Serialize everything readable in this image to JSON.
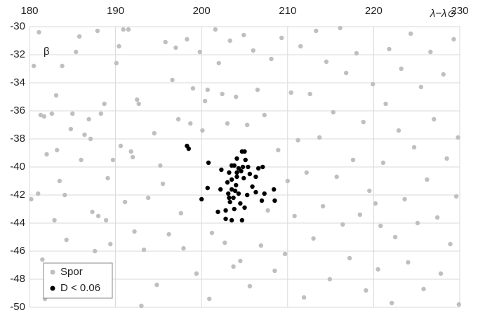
{
  "chart_data": {
    "type": "scatter",
    "xlabel": "λ−λ⊙",
    "ylabel": "β",
    "xlim": [
      180,
      230
    ],
    "ylim": [
      -50,
      -30
    ],
    "xticks": [
      180,
      190,
      200,
      210,
      220,
      230
    ],
    "yticks": [
      -50,
      -48,
      -46,
      -44,
      -42,
      -40,
      -38,
      -36,
      -34,
      -32,
      -30
    ],
    "grid": true,
    "legend": "lower left",
    "series": [
      {
        "name": "Spor",
        "color": "#bfbfbf",
        "x": [
          180.2,
          180.5,
          181.1,
          181.3,
          181.7,
          181.0,
          181.5,
          181.8,
          182.0,
          182.3,
          182.6,
          182.9,
          183.1,
          183.2,
          183.5,
          183.8,
          184.1,
          184.3,
          184.8,
          185.0,
          185.4,
          185.8,
          186.0,
          186.4,
          186.9,
          187.1,
          187.3,
          187.6,
          187.9,
          188.0,
          188.3,
          188.5,
          188.7,
          188.9,
          189.1,
          189.4,
          189.7,
          190.1,
          190.4,
          190.6,
          190.9,
          191.1,
          191.5,
          191.8,
          192.0,
          192.2,
          192.5,
          192.7,
          193.0,
          193.3,
          193.8,
          194.5,
          194.8,
          195.2,
          195.5,
          195.8,
          196.2,
          196.6,
          197.0,
          197.3,
          197.6,
          197.9,
          198.3,
          198.7,
          199.0,
          199.4,
          199.8,
          200.1,
          200.4,
          200.7,
          200.9,
          201.2,
          201.6,
          202.0,
          202.4,
          202.7,
          203.0,
          203.3,
          203.7,
          204.0,
          204.5,
          204.9,
          205.3,
          205.6,
          206.0,
          206.5,
          206.9,
          207.3,
          207.7,
          208.1,
          208.5,
          208.9,
          209.3,
          209.7,
          210.0,
          210.4,
          210.8,
          211.2,
          211.5,
          211.9,
          212.2,
          212.6,
          213.0,
          213.3,
          213.7,
          214.1,
          214.5,
          214.9,
          215.3,
          215.7,
          216.1,
          216.4,
          216.8,
          217.2,
          217.6,
          218.0,
          218.4,
          218.8,
          219.1,
          219.5,
          219.9,
          220.2,
          220.5,
          220.8,
          221.1,
          221.4,
          221.8,
          222.1,
          222.5,
          222.9,
          223.2,
          223.6,
          224.0,
          224.3,
          224.7,
          225.1,
          225.5,
          225.8,
          226.2,
          226.6,
          227.0,
          227.4,
          227.8,
          228.1,
          228.5,
          228.9,
          229.3,
          229.6,
          229.8,
          229.9
        ],
        "values": [
          -42.3,
          -32.8,
          -30.4,
          -36.3,
          -36.4,
          -41.9,
          -46.6,
          -49.4,
          -39.1,
          -48.0,
          -36.2,
          -43.8,
          -34.9,
          -38.8,
          -41.0,
          -32.8,
          -42.0,
          -45.2,
          -37.3,
          -36.2,
          -31.8,
          -30.7,
          -39.5,
          -37.7,
          -36.6,
          -38.0,
          -43.2,
          -46.0,
          -30.3,
          -43.5,
          -36.2,
          -48.7,
          -35.5,
          -43.8,
          -40.8,
          -45.5,
          -39.5,
          -32.6,
          -31.4,
          -38.5,
          -30.2,
          -42.5,
          -30.2,
          -38.9,
          -39.3,
          -44.6,
          -35.2,
          -35.5,
          -49.9,
          -45.9,
          -42.2,
          -37.6,
          -48.4,
          -39.9,
          -41.2,
          -31.1,
          -44.8,
          -33.8,
          -31.5,
          -36.6,
          -43.3,
          -45.8,
          -30.9,
          -36.9,
          -34.4,
          -47.6,
          -31.8,
          -37.4,
          -35.3,
          -34.5,
          -49.4,
          -44.7,
          -30.2,
          -32.6,
          -34.8,
          -45.4,
          -36.9,
          -31.0,
          -47.1,
          -35.0,
          -46.7,
          -30.6,
          -37.0,
          -48.5,
          -31.7,
          -34.5,
          -45.6,
          -36.3,
          -43.1,
          -32.3,
          -47.4,
          -38.8,
          -30.8,
          -46.2,
          -41.0,
          -34.7,
          -43.5,
          -38.1,
          -31.4,
          -49.3,
          -40.4,
          -34.8,
          -45.1,
          -30.3,
          -37.9,
          -42.8,
          -32.5,
          -48.0,
          -36.1,
          -40.7,
          -30.1,
          -44.1,
          -33.3,
          -46.5,
          -39.5,
          -31.9,
          -43.4,
          -36.8,
          -48.8,
          -41.7,
          -34.1,
          -42.6,
          -47.3,
          -44.2,
          -39.7,
          -35.5,
          -31.6,
          -49.7,
          -45.0,
          -37.4,
          -33.0,
          -42.3,
          -46.8,
          -30.5,
          -38.6,
          -44.0,
          -34.3,
          -48.7,
          -40.9,
          -31.8,
          -36.6,
          -43.6,
          -47.6,
          -33.4,
          -39.4,
          -45.5,
          -30.9,
          -42.1,
          -37.9,
          -49.8
        ]
      },
      {
        "name": "D < 0.06",
        "color": "#000000",
        "x": [
          198.3,
          198.5,
          200.8,
          202.3,
          202.2,
          200.7,
          200.0,
          201.9,
          202.8,
          202.8,
          203.5,
          203.8,
          204.7,
          204.7,
          205.0,
          204.1,
          203.8,
          204.1,
          204.3,
          204.6,
          204.8,
          205.1,
          205.4,
          204.9,
          204.1,
          203.5,
          203.5,
          203.0,
          203.5,
          203.9,
          204.3,
          203.7,
          203.3,
          204.5,
          205.0,
          205.3,
          205.6,
          205.9,
          206.3,
          206.3,
          206.6,
          207.1,
          207.3,
          207.0,
          208.4,
          208.5,
          203.1,
          203.2,
          204.0,
          203.2
        ],
        "values": [
          -38.5,
          -38.7,
          -39.7,
          -40.2,
          -41.6,
          -41.5,
          -42.3,
          -43.2,
          -43.1,
          -43.7,
          -43.8,
          -43.0,
          -43.8,
          -38.9,
          -38.9,
          -39.4,
          -39.9,
          -40.4,
          -40.1,
          -40.3,
          -40.0,
          -39.5,
          -40.0,
          -40.8,
          -40.7,
          -39.9,
          -40.9,
          -41.1,
          -41.6,
          -41.7,
          -41.9,
          -42.2,
          -42.5,
          -42.6,
          -42.9,
          -42.0,
          -40.5,
          -41.4,
          -41.8,
          -40.7,
          -40.1,
          -40.0,
          -41.9,
          -42.4,
          -41.6,
          -42.4,
          -41.9,
          -42.2,
          -41.3,
          -40.4
        ]
      }
    ]
  }
}
